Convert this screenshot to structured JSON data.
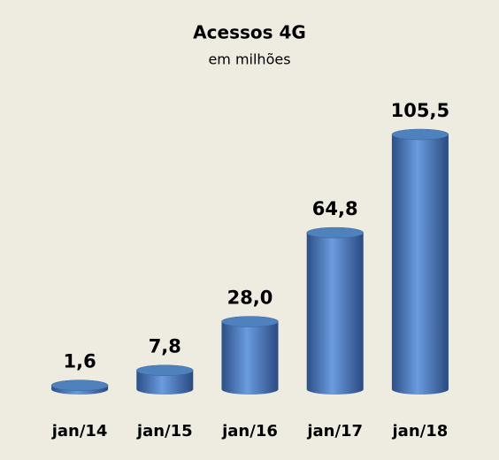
{
  "chart_data": {
    "type": "bar",
    "title": "Acessos 4G",
    "subtitle": "em milhões",
    "categories": [
      "jan/14",
      "jan/15",
      "jan/16",
      "jan/17",
      "jan/18"
    ],
    "values": [
      1.6,
      7.8,
      28.0,
      64.8,
      105.5
    ],
    "value_labels": [
      "1,6",
      "7,8",
      "28,0",
      "64,8",
      "105,5"
    ],
    "color": "#4f81bd"
  }
}
